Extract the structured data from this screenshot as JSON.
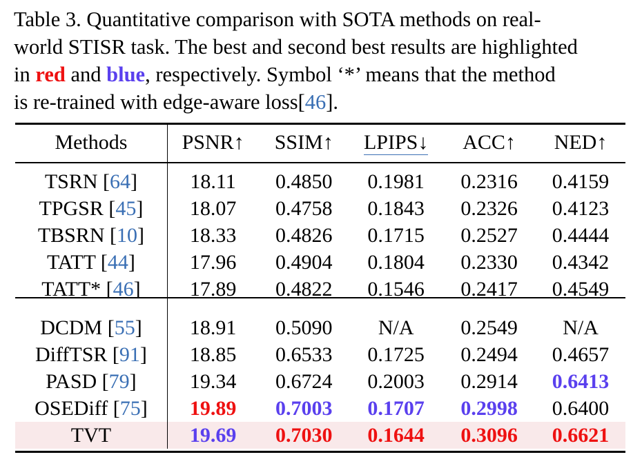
{
  "caption": {
    "line1": "Table 3.  Quantitative comparison with SOTA methods on real-",
    "line2": "world STISR task. The best and second best results are highlighted",
    "line3_in": "in ",
    "line3_red": "red",
    "line3_and": " and ",
    "line3_blue": "blue",
    "line3_rest": ", respectively.  Symbol ‘*’ means that the method",
    "line4_pre": "is re-trained with edge-aware loss[",
    "line4_ref": "46",
    "line4_post": "]."
  },
  "table": {
    "headers": {
      "methods": "Methods",
      "psnr": "PSNR↑",
      "ssim": "SSIM↑",
      "lpips": "LPIPS↓",
      "acc": "ACC↑",
      "ned": "NED↑"
    },
    "group1": [
      {
        "name": "TSRN",
        "ref": "64",
        "psnr": "18.11",
        "ssim": "0.4850",
        "lpips": "0.1981",
        "acc": "0.2316",
        "ned": "0.4159"
      },
      {
        "name": "TPGSR",
        "ref": "45",
        "psnr": "18.07",
        "ssim": "0.4758",
        "lpips": "0.1843",
        "acc": "0.2326",
        "ned": "0.4123"
      },
      {
        "name": "TBSRN",
        "ref": "10",
        "psnr": "18.33",
        "ssim": "0.4826",
        "lpips": "0.1715",
        "acc": "0.2527",
        "ned": "0.4444"
      },
      {
        "name": "TATT",
        "ref": "44",
        "psnr": "17.96",
        "ssim": "0.4904",
        "lpips": "0.1804",
        "acc": "0.2330",
        "ned": "0.4342"
      },
      {
        "name": "TATT*",
        "ref": "46",
        "psnr": "17.89",
        "ssim": "0.4822",
        "lpips": "0.1546",
        "acc": "0.2417",
        "ned": "0.4549"
      }
    ],
    "group2": [
      {
        "name": "DCDM",
        "ref": "55",
        "psnr": "18.91",
        "ssim": "0.5090",
        "lpips": "N/A",
        "acc": "0.2549",
        "ned": "N/A"
      },
      {
        "name": "DiffTSR",
        "ref": "91",
        "psnr": "18.85",
        "ssim": "0.6533",
        "lpips": "0.1725",
        "acc": "0.2494",
        "ned": "0.4657"
      },
      {
        "name": "PASD",
        "ref": "79",
        "psnr": "19.34",
        "ssim": "0.6724",
        "lpips": "0.2003",
        "acc": "0.2914",
        "ned": "0.6413"
      },
      {
        "name": "OSEDiff",
        "ref": "75",
        "psnr": "19.89",
        "ssim": "0.7003",
        "lpips": "0.1707",
        "acc": "0.2998",
        "ned": "0.6400"
      }
    ],
    "final": {
      "name": "TVT",
      "psnr": "19.69",
      "ssim": "0.7030",
      "lpips": "0.1644",
      "acc": "0.3096",
      "ned": "0.6621"
    }
  },
  "colors": {
    "best": "#ee1111",
    "second": "#5a40ee",
    "ref_link": "#3a6fb4",
    "highlight_row": "#f9e9ea"
  }
}
